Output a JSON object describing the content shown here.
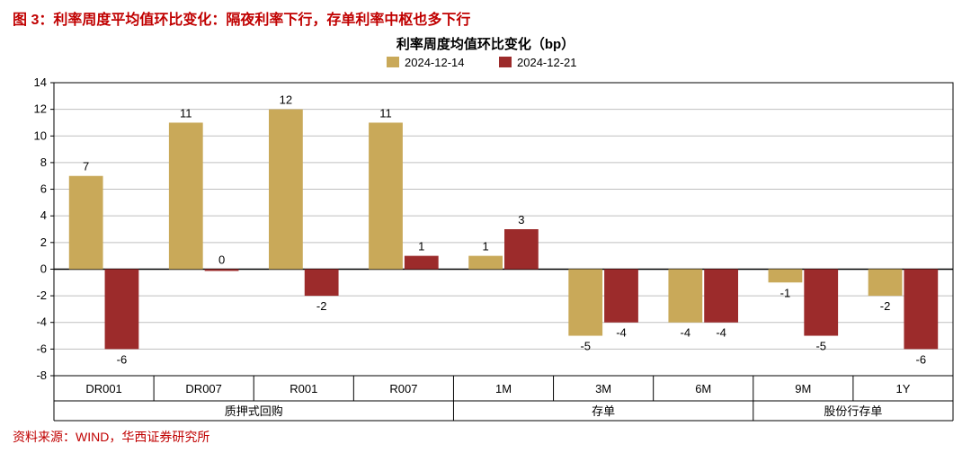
{
  "figure_title": "图 3：利率周度平均值环比变化：隔夜利率下行，存单利率中枢也多下行",
  "chart": {
    "type": "bar",
    "title": "利率周度均值环比变化（bp）",
    "title_fontsize": 15,
    "label_fontsize": 13,
    "legend": {
      "items": [
        "2024-12-14",
        "2024-12-21"
      ],
      "position": "top-center"
    },
    "series_colors": [
      "#c9a959",
      "#9c2b2b"
    ],
    "background_color": "#ffffff",
    "grid_color": "#bfbfbf",
    "axis_color": "#000000",
    "ylim": [
      -8,
      14
    ],
    "ytick_step": 2,
    "y_ticks": [
      -8,
      -6,
      -4,
      -2,
      0,
      2,
      4,
      6,
      8,
      10,
      12,
      14
    ],
    "bar_width_ratio": 0.34,
    "categories": [
      {
        "label": "DR001",
        "group": "质押式回购",
        "values": [
          7,
          -6
        ]
      },
      {
        "label": "DR007",
        "group": "质押式回购",
        "values": [
          11,
          0
        ]
      },
      {
        "label": "R001",
        "group": "质押式回购",
        "values": [
          12,
          -2
        ]
      },
      {
        "label": "R007",
        "group": "质押式回购",
        "values": [
          11,
          1
        ]
      },
      {
        "label": "1M",
        "group": "存单",
        "values": [
          1,
          3
        ]
      },
      {
        "label": "3M",
        "group": "存单",
        "values": [
          -5,
          -4
        ]
      },
      {
        "label": "6M",
        "group": "存单",
        "values": [
          -4,
          -4
        ]
      },
      {
        "label": "9M",
        "group": "股份行存单",
        "values": [
          -1,
          -5
        ]
      },
      {
        "label": "1Y",
        "group": "股份行存单",
        "values": [
          -2,
          -6
        ]
      }
    ],
    "group_order": [
      "质押式回购",
      "存单",
      "股份行存单"
    ]
  },
  "source": "资料来源：WIND，华西证券研究所"
}
